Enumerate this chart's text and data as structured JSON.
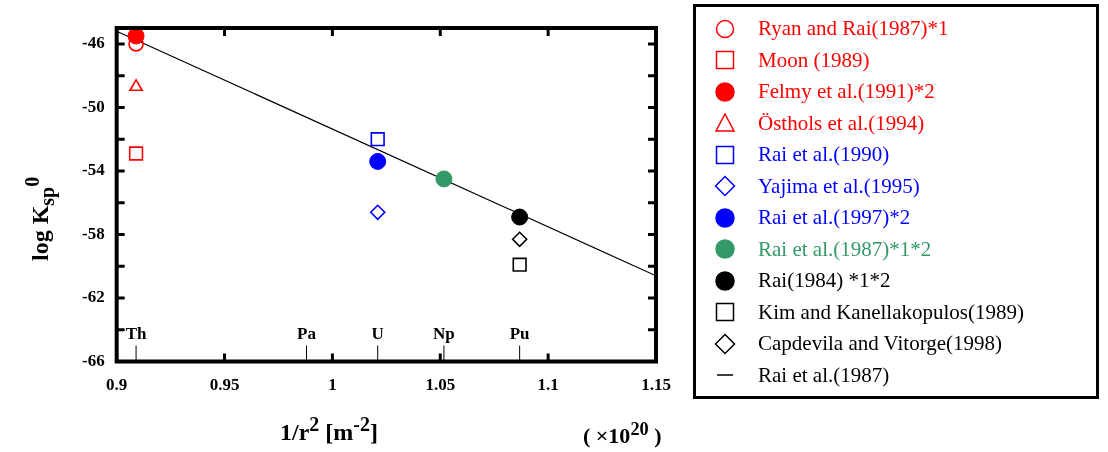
{
  "chart_data": {
    "type": "scatter",
    "xlabel": "1/r$^{2}$ [m$^{-2}$]",
    "ylabel": "log K$_{sp}$$^{0}$",
    "xlim": [
      0.9,
      1.15
    ],
    "xticks": [
      0.9,
      0.95,
      1,
      1.05,
      1.1,
      1.15
    ],
    "ylim": [
      -66,
      -45
    ],
    "yticks": [
      -66,
      {
        "value": -64,
        "label": null
      },
      -62,
      {
        "value": -60,
        "label": null
      },
      -58,
      {
        "value": -56,
        "label": null
      },
      -54,
      {
        "value": -52,
        "label": null
      },
      -50,
      {
        "value": -48,
        "label": null
      },
      -46
    ],
    "grid": false,
    "legend": "right",
    "annotations": [
      "( ×10$^{20}$ )"
    ],
    "ref_lines": [
      {
        "axis": "x",
        "value": 0.909,
        "label": "Th"
      },
      {
        "axis": "x",
        "value": 0.988,
        "label": "Pa"
      },
      {
        "axis": "x",
        "value": 1.021,
        "label": "U"
      },
      {
        "axis": "x",
        "value": 1.0517,
        "label": "Np"
      },
      {
        "axis": "x",
        "value": 1.0868,
        "label": "Pu"
      }
    ],
    "series": [
      {
        "name": "Ryan and Rai(1987)*1",
        "color": "#ff0000",
        "marker": "circle",
        "x": [
          0.909
        ],
        "values": [
          -46
        ]
      },
      {
        "name": "Moon (1989)",
        "color": "#ff0000",
        "marker": "square",
        "x": [
          0.909
        ],
        "values": [
          -52.9
        ]
      },
      {
        "name": "Felmy et al.(1991)*2",
        "color": "#ff0000",
        "marker": "circle",
        "colors": [
          "#ff0000"
        ],
        "x": [
          0.909
        ],
        "values": [
          -45.5
        ]
      },
      {
        "name": "Östhols et al.(1994)",
        "color": "#ff0000",
        "marker": "triangle",
        "x": [
          0.909
        ],
        "values": [
          -48.7
        ]
      },
      {
        "name": "Rai et al.(1990)",
        "color": "#0000ff",
        "marker": "square",
        "x": [
          1.021
        ],
        "values": [
          -52
        ]
      },
      {
        "name": "Yajima et al.(1995)",
        "color": "#0000ff",
        "marker": "diamond",
        "x": [
          1.021
        ],
        "values": [
          -56.6
        ]
      },
      {
        "name": "Rai et al.(1997)*2",
        "color": "#0000ff",
        "marker": "circle",
        "colors": [
          "#0000ff"
        ],
        "x": [
          1.021
        ],
        "values": [
          -53.4
        ]
      },
      {
        "name": "Rai et al.(1987)*1*2",
        "color": "#339966",
        "marker": "circle",
        "colors": [
          "#339966"
        ],
        "x": [
          1.0517
        ],
        "values": [
          -54.5
        ]
      },
      {
        "name": "Rai(1984) *1*2",
        "color": "#000000",
        "marker": "circle",
        "colors": [
          "#000000"
        ],
        "x": [
          1.0868
        ],
        "values": [
          -56.9
        ]
      },
      {
        "name": "Kim and Kanellakopulos(1989)",
        "color": "#000000",
        "marker": "square",
        "x": [
          1.0868
        ],
        "values": [
          -59.9
        ]
      },
      {
        "name": "Capdevila and Vitorge(1998)",
        "color": "#000000",
        "marker": "diamond",
        "x": [
          1.0868
        ],
        "values": [
          -58.3
        ]
      },
      {
        "name": "Rai et al.(1987)",
        "color": "#000000",
        "type": "line",
        "marker": "none",
        "line_style": "solid",
        "x": [
          0.9,
          1.15
        ],
        "values": [
          -45.2,
          -60.6
        ]
      }
    ]
  }
}
